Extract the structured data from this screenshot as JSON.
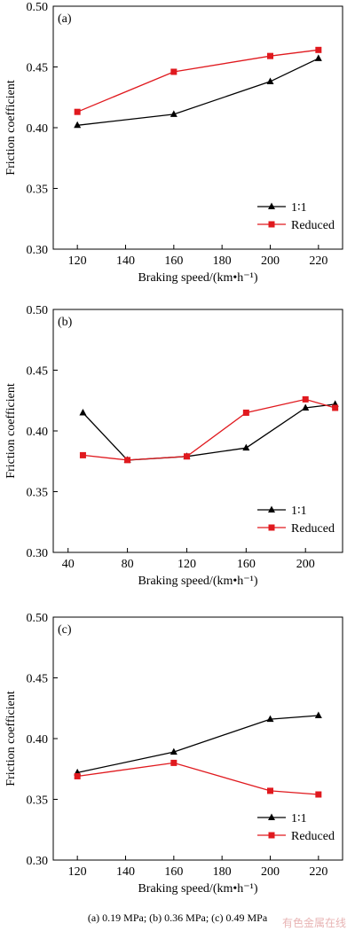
{
  "caption": "(a)  0.19  MPa;  (b) 0.36 MPa; (c) 0.49 MPa",
  "watermark": "有色金属在线",
  "colors": {
    "series_1_1": "#000000",
    "series_reduced": "#e0191e"
  },
  "chart_data": [
    {
      "panel_label": "(a)",
      "type": "line",
      "xlabel": "Braking speed/(km•h⁻¹)",
      "ylabel": "Friction coefficient",
      "xlim": [
        110,
        230
      ],
      "ylim": [
        0.3,
        0.5
      ],
      "xticks": [
        120,
        140,
        160,
        180,
        200,
        220
      ],
      "yticks": [
        0.3,
        0.35,
        0.4,
        0.45,
        0.5
      ],
      "legend_position": "bottom-right",
      "series": [
        {
          "name": "1∶1",
          "marker": "triangle",
          "color": "#000000",
          "x": [
            120,
            160,
            200,
            220
          ],
          "y": [
            0.402,
            0.411,
            0.438,
            0.457
          ]
        },
        {
          "name": "Reduced",
          "marker": "square",
          "color": "#e0191e",
          "x": [
            120,
            160,
            200,
            220
          ],
          "y": [
            0.413,
            0.446,
            0.459,
            0.464
          ]
        }
      ]
    },
    {
      "panel_label": "(b)",
      "type": "line",
      "xlabel": "Braking speed/(km•h⁻¹)",
      "ylabel": "Friction coefficient",
      "xlim": [
        30,
        225
      ],
      "ylim": [
        0.3,
        0.5
      ],
      "xticks": [
        40,
        80,
        120,
        160,
        200
      ],
      "yticks": [
        0.3,
        0.35,
        0.4,
        0.45,
        0.5
      ],
      "legend_position": "bottom-right",
      "series": [
        {
          "name": "1∶1",
          "marker": "triangle",
          "color": "#000000",
          "x": [
            50,
            80,
            120,
            160,
            200,
            220
          ],
          "y": [
            0.415,
            0.376,
            0.379,
            0.386,
            0.419,
            0.422
          ]
        },
        {
          "name": "Reduced",
          "marker": "square",
          "color": "#e0191e",
          "x": [
            50,
            80,
            120,
            160,
            200,
            220
          ],
          "y": [
            0.38,
            0.376,
            0.379,
            0.415,
            0.426,
            0.419
          ]
        }
      ]
    },
    {
      "panel_label": "(c)",
      "type": "line",
      "xlabel": "Braking speed/(km•h⁻¹)",
      "ylabel": "Friction coefficient",
      "xlim": [
        110,
        230
      ],
      "ylim": [
        0.3,
        0.5
      ],
      "xticks": [
        120,
        140,
        160,
        180,
        200,
        220
      ],
      "yticks": [
        0.3,
        0.35,
        0.4,
        0.45,
        0.5
      ],
      "legend_position": "bottom-right",
      "series": [
        {
          "name": "1∶1",
          "marker": "triangle",
          "color": "#000000",
          "x": [
            120,
            160,
            200,
            220
          ],
          "y": [
            0.372,
            0.389,
            0.416,
            0.419
          ]
        },
        {
          "name": "Reduced",
          "marker": "square",
          "color": "#e0191e",
          "x": [
            120,
            160,
            200,
            220
          ],
          "y": [
            0.369,
            0.38,
            0.357,
            0.354
          ]
        }
      ]
    }
  ]
}
